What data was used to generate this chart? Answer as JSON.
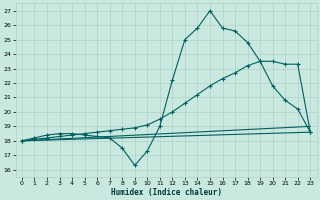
{
  "xlabel": "Humidex (Indice chaleur)",
  "bg_color": "#c8e8e0",
  "grid_color": "#b0d0c8",
  "line_color": "#006060",
  "figsize": [
    3.2,
    2.0
  ],
  "dpi": 100,
  "xlim": [
    -0.5,
    23.5
  ],
  "ylim": [
    15.5,
    27.5
  ],
  "xticks": [
    0,
    1,
    2,
    3,
    4,
    5,
    6,
    7,
    8,
    9,
    10,
    11,
    12,
    13,
    14,
    15,
    16,
    17,
    18,
    19,
    20,
    21,
    22,
    23
  ],
  "yticks": [
    16,
    17,
    18,
    19,
    20,
    21,
    22,
    23,
    24,
    25,
    26,
    27
  ],
  "series": [
    {
      "x": [
        0,
        1,
        2,
        3,
        4,
        5,
        6,
        7,
        8,
        9,
        10,
        11,
        12,
        13,
        14,
        15,
        16,
        17,
        18,
        19,
        20,
        21,
        22,
        23
      ],
      "y": [
        18.0,
        18.2,
        18.4,
        18.5,
        18.5,
        18.4,
        18.3,
        18.2,
        17.5,
        16.3,
        17.3,
        19.0,
        22.2,
        25.0,
        25.8,
        27.0,
        25.8,
        25.6,
        24.8,
        23.5,
        21.8,
        20.8,
        20.2,
        18.6
      ],
      "marker": true
    },
    {
      "x": [
        0,
        1,
        2,
        3,
        4,
        5,
        6,
        7,
        8,
        9,
        10,
        11,
        12,
        13,
        14,
        15,
        16,
        17,
        18,
        19,
        20,
        21,
        22,
        23
      ],
      "y": [
        18.0,
        18.1,
        18.2,
        18.3,
        18.4,
        18.5,
        18.6,
        18.7,
        18.8,
        18.9,
        19.1,
        19.5,
        20.0,
        20.6,
        21.2,
        21.8,
        22.3,
        22.7,
        23.2,
        23.5,
        23.5,
        23.3,
        23.3,
        18.6
      ],
      "marker": true
    },
    {
      "x": [
        0,
        23
      ],
      "y": [
        18.0,
        19.0
      ],
      "marker": false
    },
    {
      "x": [
        0,
        23
      ],
      "y": [
        18.0,
        18.6
      ],
      "marker": false
    }
  ]
}
